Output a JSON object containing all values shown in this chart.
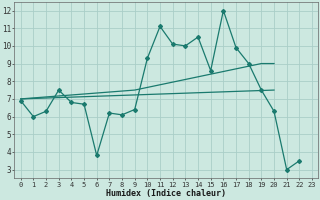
{
  "xlabel": "Humidex (Indice chaleur)",
  "bg_color": "#cce8e0",
  "grid_color": "#aacec8",
  "line_color": "#1a7a6e",
  "xlim": [
    -0.5,
    23.5
  ],
  "ylim": [
    2.5,
    12.5
  ],
  "xticks": [
    0,
    1,
    2,
    3,
    4,
    5,
    6,
    7,
    8,
    9,
    10,
    11,
    12,
    13,
    14,
    15,
    16,
    17,
    18,
    19,
    20,
    21,
    22,
    23
  ],
  "yticks": [
    3,
    4,
    5,
    6,
    7,
    8,
    9,
    10,
    11,
    12
  ],
  "line1_x": [
    0,
    1,
    2,
    3,
    4,
    5,
    6,
    7,
    8,
    9,
    10,
    11,
    12,
    13,
    14,
    15,
    16,
    17,
    18,
    19,
    20,
    21,
    22
  ],
  "line1_y": [
    6.9,
    6.0,
    6.3,
    7.5,
    6.8,
    6.7,
    3.8,
    6.2,
    6.1,
    6.4,
    9.3,
    11.1,
    10.1,
    10.0,
    10.5,
    8.6,
    12.0,
    9.9,
    9.0,
    7.5,
    6.3,
    3.0,
    3.5
  ],
  "line2_x": [
    0,
    9,
    19,
    20
  ],
  "line2_y": [
    7.0,
    7.5,
    9.0,
    9.0
  ],
  "line3_x": [
    0,
    20
  ],
  "line3_y": [
    7.0,
    7.5
  ]
}
